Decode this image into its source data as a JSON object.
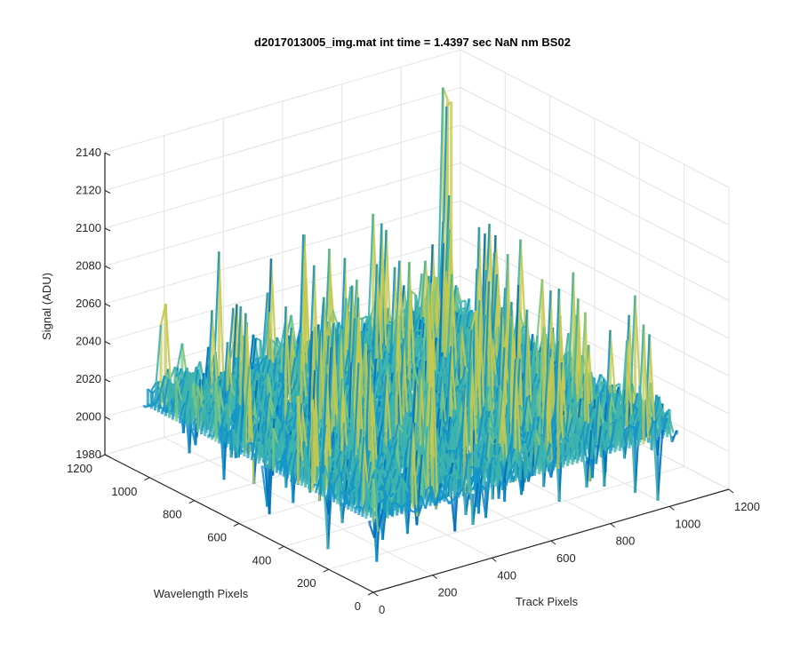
{
  "chart_data": {
    "type": "surface3d",
    "title": "d2017013005_img.mat int time = 1.4397 sec  NaN nm BS02",
    "xlabel": "Track Pixels",
    "ylabel": "Wavelength Pixels",
    "zlabel": "Signal (ADU)",
    "xlim": [
      0,
      1200
    ],
    "ylim": [
      0,
      1200
    ],
    "zlim": [
      1980,
      2140
    ],
    "x_ticks": [
      "0",
      "200",
      "400",
      "600",
      "800",
      "1000",
      "1200"
    ],
    "y_ticks": [
      "0",
      "200",
      "400",
      "600",
      "800",
      "1000",
      "1200"
    ],
    "z_ticks": [
      "1980",
      "2000",
      "2020",
      "2040",
      "2060",
      "2080",
      "2100",
      "2120",
      "2140"
    ],
    "grid": true,
    "surface": {
      "extent_x": [
        0,
        1024
      ],
      "extent_y": [
        0,
        1024
      ],
      "baseline_signal": 2025,
      "noise_spread": 14,
      "peak_signal": 2140,
      "min_signal": 1985,
      "colormap": [
        "#0072bd",
        "#1496c8",
        "#3fb4ac",
        "#7ec67f",
        "#c3c951"
      ]
    }
  }
}
